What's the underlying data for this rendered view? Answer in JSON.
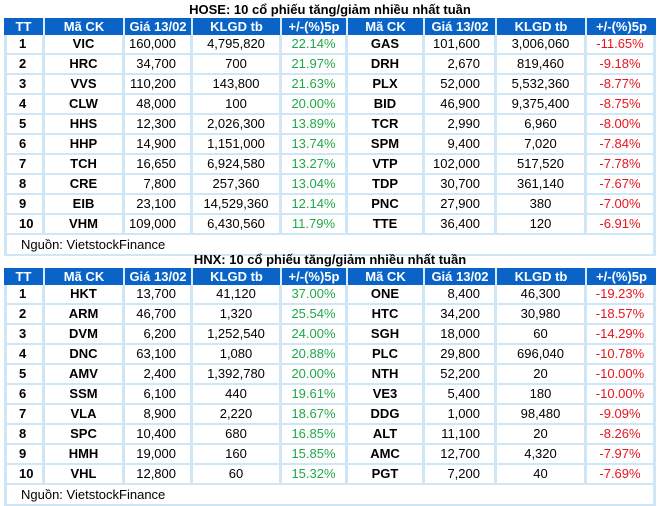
{
  "hose": {
    "title": "HOSE: 10 cổ phiếu tăng/giảm nhiều nhất tuần",
    "headers": [
      "TT",
      "Mã CK",
      "Giá 13/02",
      "KLGD tb",
      "+/-(%)5p",
      "Mã CK",
      "Giá 13/02",
      "KLGD tb",
      "+/-(%)5p"
    ],
    "rows": [
      {
        "tt": "1",
        "up_code": "VIC",
        "up_price": "160,000",
        "up_vol": "4,795,820",
        "up_pct": "22.14%",
        "down_code": "GAS",
        "down_price": "101,600",
        "down_vol": "3,006,060",
        "down_pct": "-11.65%"
      },
      {
        "tt": "2",
        "up_code": "HRC",
        "up_price": "34,700",
        "up_vol": "700",
        "up_pct": "21.97%",
        "down_code": "DRH",
        "down_price": "2,670",
        "down_vol": "819,460",
        "down_pct": "-9.18%"
      },
      {
        "tt": "3",
        "up_code": "VVS",
        "up_price": "110,200",
        "up_vol": "143,800",
        "up_pct": "21.63%",
        "down_code": "PLX",
        "down_price": "52,000",
        "down_vol": "5,532,360",
        "down_pct": "-8.77%"
      },
      {
        "tt": "4",
        "up_code": "CLW",
        "up_price": "48,000",
        "up_vol": "100",
        "up_pct": "20.00%",
        "down_code": "BID",
        "down_price": "46,900",
        "down_vol": "9,375,400",
        "down_pct": "-8.75%"
      },
      {
        "tt": "5",
        "up_code": "HHS",
        "up_price": "12,300",
        "up_vol": "2,026,300",
        "up_pct": "13.89%",
        "down_code": "TCR",
        "down_price": "2,990",
        "down_vol": "6,960",
        "down_pct": "-8.00%"
      },
      {
        "tt": "6",
        "up_code": "HHP",
        "up_price": "14,900",
        "up_vol": "1,151,000",
        "up_pct": "13.74%",
        "down_code": "SPM",
        "down_price": "9,400",
        "down_vol": "7,020",
        "down_pct": "-7.84%"
      },
      {
        "tt": "7",
        "up_code": "TCH",
        "up_price": "16,650",
        "up_vol": "6,924,580",
        "up_pct": "13.27%",
        "down_code": "VTP",
        "down_price": "102,000",
        "down_vol": "517,520",
        "down_pct": "-7.78%"
      },
      {
        "tt": "8",
        "up_code": "CRE",
        "up_price": "7,800",
        "up_vol": "257,360",
        "up_pct": "13.04%",
        "down_code": "TDP",
        "down_price": "30,700",
        "down_vol": "361,140",
        "down_pct": "-7.67%"
      },
      {
        "tt": "9",
        "up_code": "EIB",
        "up_price": "23,100",
        "up_vol": "14,529,360",
        "up_pct": "12.14%",
        "down_code": "PNC",
        "down_price": "27,900",
        "down_vol": "380",
        "down_pct": "-7.00%"
      },
      {
        "tt": "10",
        "up_code": "VHM",
        "up_price": "109,000",
        "up_vol": "6,430,560",
        "up_pct": "11.79%",
        "down_code": "TTE",
        "down_price": "36,400",
        "down_vol": "120",
        "down_pct": "-6.91%"
      }
    ],
    "source": "Nguồn: VietstockFinance"
  },
  "hnx": {
    "title": "HNX: 10 cổ phiếu tăng/giảm nhiều nhất tuần",
    "headers": [
      "TT",
      "Mã CK",
      "Giá 13/02",
      "KLGD tb",
      "+/-(%)5p",
      "Mã CK",
      "Giá 13/02",
      "KLGD tb",
      "+/-(%)5p"
    ],
    "rows": [
      {
        "tt": "1",
        "up_code": "HKT",
        "up_price": "13,700",
        "up_vol": "41,120",
        "up_pct": "37.00%",
        "down_code": "ONE",
        "down_price": "8,400",
        "down_vol": "46,300",
        "down_pct": "-19.23%"
      },
      {
        "tt": "2",
        "up_code": "ARM",
        "up_price": "46,700",
        "up_vol": "1,320",
        "up_pct": "25.54%",
        "down_code": "HTC",
        "down_price": "34,200",
        "down_vol": "30,980",
        "down_pct": "-18.57%"
      },
      {
        "tt": "3",
        "up_code": "DVM",
        "up_price": "6,200",
        "up_vol": "1,252,540",
        "up_pct": "24.00%",
        "down_code": "SGH",
        "down_price": "18,000",
        "down_vol": "60",
        "down_pct": "-14.29%"
      },
      {
        "tt": "4",
        "up_code": "DNC",
        "up_price": "63,100",
        "up_vol": "1,080",
        "up_pct": "20.88%",
        "down_code": "PLC",
        "down_price": "29,800",
        "down_vol": "696,040",
        "down_pct": "-10.78%"
      },
      {
        "tt": "5",
        "up_code": "AMV",
        "up_price": "2,400",
        "up_vol": "1,392,780",
        "up_pct": "20.00%",
        "down_code": "NTH",
        "down_price": "52,200",
        "down_vol": "20",
        "down_pct": "-10.00%"
      },
      {
        "tt": "6",
        "up_code": "SSM",
        "up_price": "6,100",
        "up_vol": "440",
        "up_pct": "19.61%",
        "down_code": "VE3",
        "down_price": "5,400",
        "down_vol": "180",
        "down_pct": "-10.00%"
      },
      {
        "tt": "7",
        "up_code": "VLA",
        "up_price": "8,900",
        "up_vol": "2,220",
        "up_pct": "18.67%",
        "down_code": "DDG",
        "down_price": "1,000",
        "down_vol": "98,480",
        "down_pct": "-9.09%"
      },
      {
        "tt": "8",
        "up_code": "SPC",
        "up_price": "10,400",
        "up_vol": "680",
        "up_pct": "16.85%",
        "down_code": "ALT",
        "down_price": "11,100",
        "down_vol": "20",
        "down_pct": "-8.26%"
      },
      {
        "tt": "9",
        "up_code": "HMH",
        "up_price": "19,000",
        "up_vol": "160",
        "up_pct": "15.85%",
        "down_code": "AMC",
        "down_price": "12,700",
        "down_vol": "4,320",
        "down_pct": "-7.97%"
      },
      {
        "tt": "10",
        "up_code": "VHL",
        "up_price": "12,800",
        "up_vol": "60",
        "up_pct": "15.32%",
        "down_code": "PGT",
        "down_price": "7,200",
        "down_vol": "40",
        "down_pct": "-7.69%"
      }
    ],
    "source": "Nguồn: VietstockFinance"
  },
  "colors": {
    "header_bg": "#0a64c8",
    "grid": "#cfe6f7",
    "up": "#1fa84a",
    "down": "#e8141e"
  }
}
